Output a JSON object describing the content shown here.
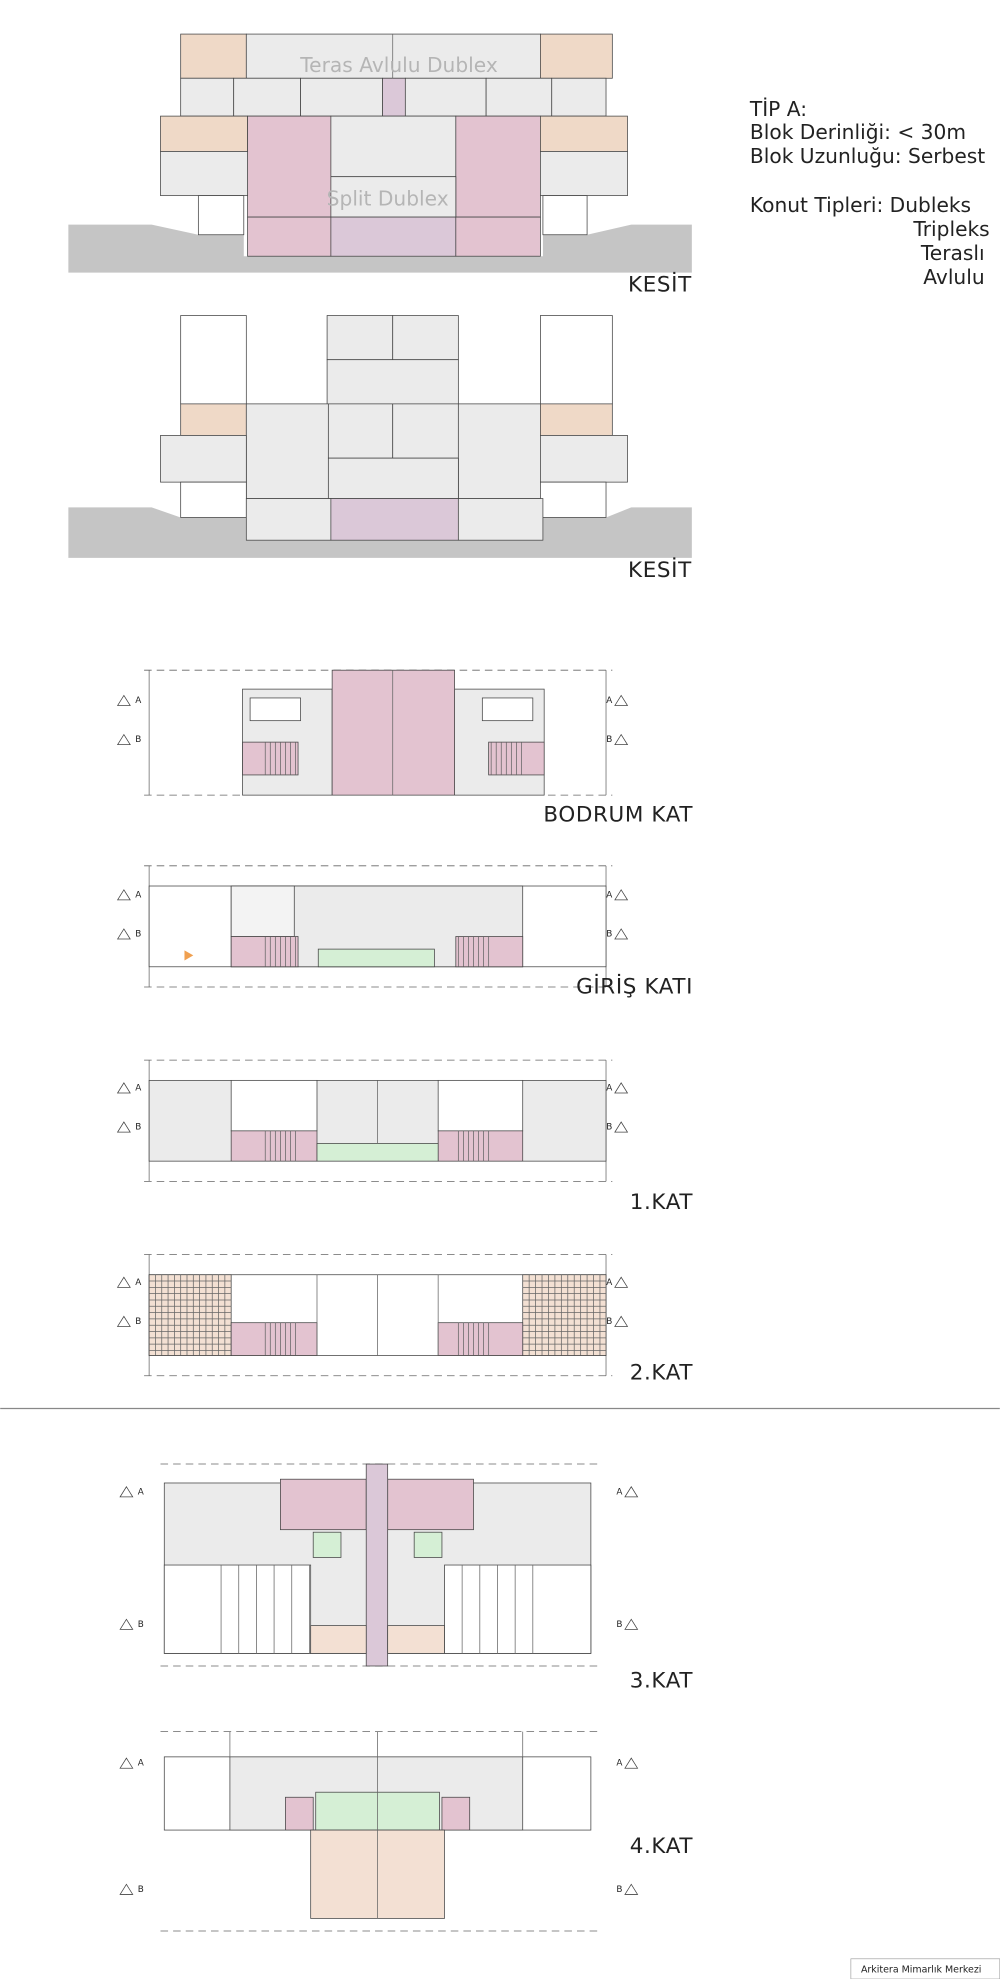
{
  "info": {
    "type_label": "TİP A:",
    "depth": "Blok Derinliği: < 30m",
    "length": "Blok Uzunluğu: Serbest",
    "types": [
      "Konut Tipleri: Dubleks",
      "Tripleks",
      "Teraslı",
      "Avlulu"
    ]
  },
  "sections": [
    {
      "label": "KESİT",
      "tags": [
        "Teras Avlulu Dublex",
        "Split Dublex"
      ]
    },
    {
      "label": "KESİT"
    }
  ],
  "plans": [
    "BODRUM KAT",
    "GİRİŞ KATI",
    "1.KAT",
    "2.KAT",
    "3.KAT",
    "4.KAT"
  ],
  "section_markers": [
    "A",
    "B"
  ],
  "footer": "Arkitera Mimarlık Merkezi"
}
